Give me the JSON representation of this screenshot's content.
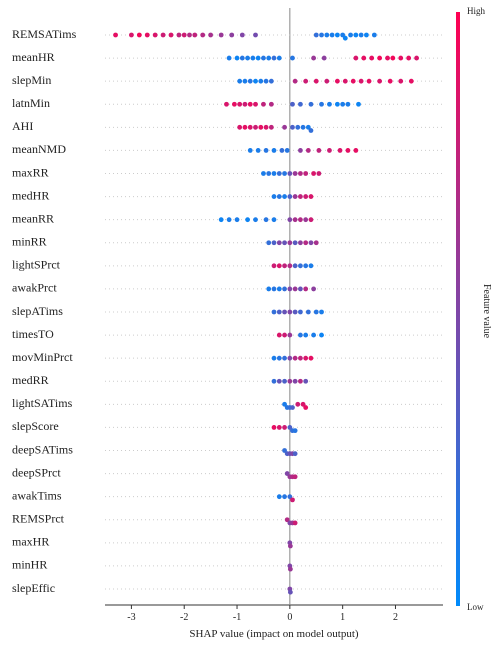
{
  "chart_data": {
    "type": "beeswarm",
    "x_label": "SHAP value (impact on model output)",
    "xlim": [
      -3.5,
      2.9
    ],
    "xticks": [
      -3,
      -2,
      -1,
      0,
      1,
      2
    ],
    "colormap": [
      "#008bfb",
      "#ff0052"
    ],
    "colorbar": {
      "title": "Feature value",
      "high_label": "High",
      "low_label": "Low"
    },
    "features": [
      {
        "name": "REMSATims",
        "points": [
          [
            -3.3,
            0.9
          ],
          [
            -3.0,
            0.85
          ],
          [
            -2.85,
            0.95
          ],
          [
            -2.7,
            0.9
          ],
          [
            -2.55,
            0.85
          ],
          [
            -2.4,
            0.8
          ],
          [
            -2.25,
            0.85
          ],
          [
            -2.1,
            0.75
          ],
          [
            -2.0,
            0.8
          ],
          [
            -1.9,
            0.7
          ],
          [
            -1.8,
            0.75
          ],
          [
            -1.65,
            0.7
          ],
          [
            -1.5,
            0.65
          ],
          [
            -1.3,
            0.6
          ],
          [
            -1.1,
            0.55
          ],
          [
            -0.9,
            0.5
          ],
          [
            -0.65,
            0.45
          ],
          [
            0.5,
            0.2
          ],
          [
            0.6,
            0.15
          ],
          [
            0.7,
            0.1
          ],
          [
            0.8,
            0.1
          ],
          [
            0.9,
            0.05
          ],
          [
            1.0,
            0.1
          ],
          [
            1.05,
            0.05
          ],
          [
            1.15,
            0.1
          ],
          [
            1.25,
            0.05
          ],
          [
            1.35,
            0.1
          ],
          [
            1.45,
            0.05
          ],
          [
            1.6,
            0.1
          ]
        ]
      },
      {
        "name": "meanHR",
        "points": [
          [
            -1.15,
            0.1
          ],
          [
            -1.0,
            0.05
          ],
          [
            -0.9,
            0.15
          ],
          [
            -0.8,
            0.1
          ],
          [
            -0.7,
            0.1
          ],
          [
            -0.6,
            0.05
          ],
          [
            -0.5,
            0.15
          ],
          [
            -0.4,
            0.1
          ],
          [
            -0.3,
            0.2
          ],
          [
            -0.2,
            0.1
          ],
          [
            0.05,
            0.15
          ],
          [
            0.45,
            0.6
          ],
          [
            0.65,
            0.55
          ],
          [
            1.25,
            0.85
          ],
          [
            1.4,
            0.9
          ],
          [
            1.55,
            0.9
          ],
          [
            1.7,
            0.95
          ],
          [
            1.85,
            0.9
          ],
          [
            1.95,
            0.95
          ],
          [
            2.1,
            0.9
          ],
          [
            2.25,
            0.9
          ],
          [
            2.4,
            0.85
          ]
        ]
      },
      {
        "name": "slepMin",
        "points": [
          [
            -0.95,
            0.1
          ],
          [
            -0.85,
            0.1
          ],
          [
            -0.75,
            0.15
          ],
          [
            -0.65,
            0.05
          ],
          [
            -0.55,
            0.1
          ],
          [
            -0.45,
            0.15
          ],
          [
            -0.35,
            0.2
          ],
          [
            0.1,
            0.7
          ],
          [
            0.3,
            0.8
          ],
          [
            0.5,
            0.85
          ],
          [
            0.7,
            0.8
          ],
          [
            0.9,
            0.9
          ],
          [
            1.05,
            0.85
          ],
          [
            1.2,
            0.9
          ],
          [
            1.35,
            0.85
          ],
          [
            1.5,
            0.9
          ],
          [
            1.7,
            0.85
          ],
          [
            1.9,
            0.9
          ],
          [
            2.1,
            0.85
          ],
          [
            2.3,
            0.9
          ]
        ]
      },
      {
        "name": "latnMin",
        "points": [
          [
            -1.2,
            0.85
          ],
          [
            -1.05,
            0.9
          ],
          [
            -0.95,
            0.85
          ],
          [
            -0.85,
            0.8
          ],
          [
            -0.75,
            0.9
          ],
          [
            -0.65,
            0.85
          ],
          [
            -0.5,
            0.75
          ],
          [
            -0.35,
            0.7
          ],
          [
            0.05,
            0.3
          ],
          [
            0.2,
            0.25
          ],
          [
            0.4,
            0.2
          ],
          [
            0.6,
            0.15
          ],
          [
            0.75,
            0.1
          ],
          [
            0.9,
            0.05
          ],
          [
            1.0,
            0.1
          ],
          [
            1.1,
            0.1
          ],
          [
            1.3,
            0.05
          ]
        ]
      },
      {
        "name": "AHI",
        "points": [
          [
            -0.95,
            0.85
          ],
          [
            -0.85,
            0.9
          ],
          [
            -0.75,
            0.85
          ],
          [
            -0.65,
            0.8
          ],
          [
            -0.55,
            0.9
          ],
          [
            -0.45,
            0.85
          ],
          [
            -0.35,
            0.75
          ],
          [
            -0.1,
            0.6
          ],
          [
            0.05,
            0.3
          ],
          [
            0.15,
            0.2
          ],
          [
            0.25,
            0.15
          ],
          [
            0.35,
            0.1
          ],
          [
            0.4,
            0.2
          ]
        ]
      },
      {
        "name": "meanNMD",
        "points": [
          [
            -0.75,
            0.1
          ],
          [
            -0.6,
            0.1
          ],
          [
            -0.45,
            0.15
          ],
          [
            -0.3,
            0.1
          ],
          [
            -0.15,
            0.2
          ],
          [
            -0.05,
            0.15
          ],
          [
            0.2,
            0.55
          ],
          [
            0.35,
            0.7
          ],
          [
            0.55,
            0.75
          ],
          [
            0.75,
            0.8
          ],
          [
            0.95,
            0.85
          ],
          [
            1.1,
            0.9
          ],
          [
            1.25,
            0.9
          ]
        ]
      },
      {
        "name": "maxRR",
        "points": [
          [
            -0.5,
            0.1
          ],
          [
            -0.4,
            0.15
          ],
          [
            -0.3,
            0.1
          ],
          [
            -0.2,
            0.2
          ],
          [
            -0.1,
            0.15
          ],
          [
            0.0,
            0.4
          ],
          [
            0.1,
            0.6
          ],
          [
            0.2,
            0.7
          ],
          [
            0.3,
            0.75
          ],
          [
            0.45,
            0.85
          ],
          [
            0.55,
            0.8
          ]
        ]
      },
      {
        "name": "medHR",
        "points": [
          [
            -0.3,
            0.1
          ],
          [
            -0.2,
            0.15
          ],
          [
            -0.1,
            0.1
          ],
          [
            0.0,
            0.3
          ],
          [
            0.1,
            0.6
          ],
          [
            0.2,
            0.75
          ],
          [
            0.3,
            0.8
          ],
          [
            0.4,
            0.85
          ]
        ]
      },
      {
        "name": "meanRR",
        "points": [
          [
            -1.3,
            0.05
          ],
          [
            -1.15,
            0.1
          ],
          [
            -1.0,
            0.1
          ],
          [
            -0.8,
            0.05
          ],
          [
            -0.65,
            0.1
          ],
          [
            -0.45,
            0.15
          ],
          [
            -0.3,
            0.1
          ],
          [
            0.0,
            0.5
          ],
          [
            0.1,
            0.65
          ],
          [
            0.2,
            0.7
          ],
          [
            0.3,
            0.6
          ],
          [
            0.4,
            0.8
          ]
        ]
      },
      {
        "name": "minRR",
        "points": [
          [
            -0.4,
            0.2
          ],
          [
            -0.3,
            0.3
          ],
          [
            -0.2,
            0.5
          ],
          [
            -0.1,
            0.4
          ],
          [
            0.0,
            0.6
          ],
          [
            0.1,
            0.35
          ],
          [
            0.2,
            0.55
          ],
          [
            0.3,
            0.7
          ],
          [
            0.4,
            0.5
          ],
          [
            0.5,
            0.65
          ]
        ]
      },
      {
        "name": "lightSPrct",
        "points": [
          [
            -0.3,
            0.8
          ],
          [
            -0.2,
            0.85
          ],
          [
            -0.1,
            0.75
          ],
          [
            0.0,
            0.7
          ],
          [
            0.1,
            0.3
          ],
          [
            0.2,
            0.2
          ],
          [
            0.3,
            0.15
          ],
          [
            0.4,
            0.1
          ]
        ]
      },
      {
        "name": "awakPrct",
        "points": [
          [
            -0.4,
            0.1
          ],
          [
            -0.3,
            0.15
          ],
          [
            -0.2,
            0.1
          ],
          [
            -0.1,
            0.2
          ],
          [
            0.0,
            0.5
          ],
          [
            0.1,
            0.6
          ],
          [
            0.2,
            0.4
          ],
          [
            0.3,
            0.7
          ],
          [
            0.45,
            0.55
          ]
        ]
      },
      {
        "name": "slepATims",
        "points": [
          [
            -0.3,
            0.2
          ],
          [
            -0.2,
            0.3
          ],
          [
            -0.1,
            0.4
          ],
          [
            0.0,
            0.5
          ],
          [
            0.1,
            0.35
          ],
          [
            0.2,
            0.25
          ],
          [
            0.35,
            0.2
          ],
          [
            0.5,
            0.15
          ],
          [
            0.6,
            0.1
          ]
        ]
      },
      {
        "name": "timesTO",
        "points": [
          [
            -0.2,
            0.85
          ],
          [
            -0.1,
            0.8
          ],
          [
            0.0,
            0.6
          ],
          [
            0.2,
            0.15
          ],
          [
            0.3,
            0.1
          ],
          [
            0.45,
            0.1
          ],
          [
            0.6,
            0.05
          ]
        ]
      },
      {
        "name": "movMinPrct",
        "points": [
          [
            -0.3,
            0.1
          ],
          [
            -0.2,
            0.15
          ],
          [
            -0.1,
            0.2
          ],
          [
            0.0,
            0.5
          ],
          [
            0.1,
            0.7
          ],
          [
            0.2,
            0.75
          ],
          [
            0.3,
            0.85
          ],
          [
            0.4,
            0.9
          ]
        ]
      },
      {
        "name": "medRR",
        "points": [
          [
            -0.3,
            0.2
          ],
          [
            -0.2,
            0.4
          ],
          [
            -0.1,
            0.3
          ],
          [
            0.0,
            0.6
          ],
          [
            0.1,
            0.5
          ],
          [
            0.2,
            0.7
          ],
          [
            0.3,
            0.4
          ]
        ]
      },
      {
        "name": "lightSATims",
        "points": [
          [
            -0.1,
            0.1
          ],
          [
            -0.05,
            0.15
          ],
          [
            0.0,
            0.2
          ],
          [
            0.05,
            0.3
          ],
          [
            0.15,
            0.8
          ],
          [
            0.25,
            0.85
          ],
          [
            0.3,
            0.9
          ]
        ]
      },
      {
        "name": "slepScore",
        "points": [
          [
            -0.3,
            0.9
          ],
          [
            -0.2,
            0.85
          ],
          [
            -0.1,
            0.8
          ],
          [
            0.0,
            0.3
          ],
          [
            0.05,
            0.2
          ],
          [
            0.1,
            0.15
          ]
        ]
      },
      {
        "name": "deepSATims",
        "points": [
          [
            -0.1,
            0.2
          ],
          [
            -0.05,
            0.3
          ],
          [
            0.0,
            0.4
          ],
          [
            0.05,
            0.5
          ],
          [
            0.1,
            0.3
          ]
        ]
      },
      {
        "name": "deepSPrct",
        "points": [
          [
            -0.05,
            0.5
          ],
          [
            0.0,
            0.6
          ],
          [
            0.05,
            0.7
          ],
          [
            0.1,
            0.75
          ]
        ]
      },
      {
        "name": "awakTims",
        "points": [
          [
            -0.2,
            0.1
          ],
          [
            -0.1,
            0.15
          ],
          [
            0.0,
            0.2
          ],
          [
            0.05,
            0.8
          ]
        ]
      },
      {
        "name": "REMSPrct",
        "points": [
          [
            -0.05,
            0.7
          ],
          [
            0.0,
            0.5
          ],
          [
            0.05,
            0.6
          ],
          [
            0.1,
            0.8
          ]
        ]
      },
      {
        "name": "maxHR",
        "points": [
          [
            0.0,
            0.5
          ],
          [
            0.01,
            0.6
          ]
        ]
      },
      {
        "name": "minHR",
        "points": [
          [
            0.0,
            0.5
          ],
          [
            0.01,
            0.6
          ]
        ]
      },
      {
        "name": "slepEffic",
        "points": [
          [
            0.0,
            0.5
          ],
          [
            0.01,
            0.4
          ]
        ]
      }
    ]
  }
}
